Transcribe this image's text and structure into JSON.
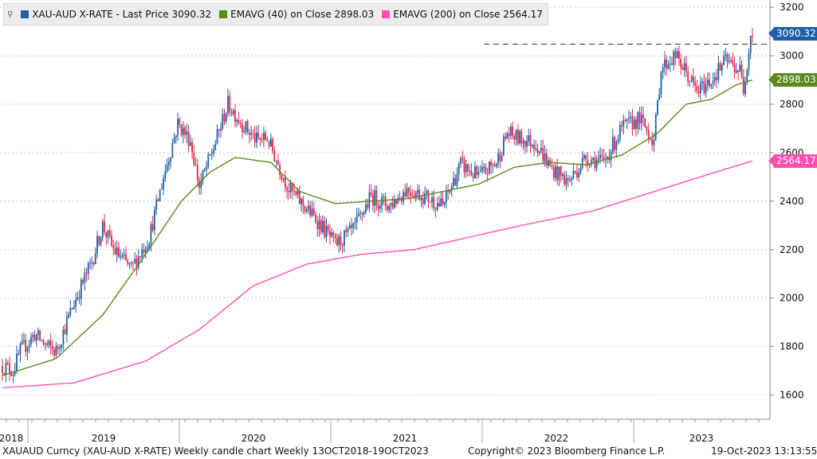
{
  "legend": {
    "pin_icon": "pin-icon",
    "series": [
      {
        "key": "price",
        "text": "XAU-AUD X-RATE - Last Price 3090.32",
        "color": "#1f5fa8"
      },
      {
        "key": "ema40",
        "text": "EMAVG (40)  on Close 2898.03",
        "color": "#5a8a1e"
      },
      {
        "key": "ema200",
        "text": "EMAVG (200)  on Close 2564.17",
        "color": "#ff4fb0"
      }
    ]
  },
  "footer": {
    "left": "XAUAUD Curncy (XAU-AUD X-RATE) Weekly candle chart  Weekly 13OCT2018-19OCT2023",
    "center": "Copyright© 2023 Bloomberg Finance L.P.",
    "right": "19-Oct-2023 13:13:55"
  },
  "badges": [
    {
      "label": "3090.32",
      "value": 3090.32,
      "color": "#1f5fa8"
    },
    {
      "label": "2898.03",
      "value": 2898.03,
      "color": "#5a8a1e"
    },
    {
      "label": "2564.17",
      "value": 2564.17,
      "color": "#ff4fb0"
    }
  ],
  "chart_data": {
    "type": "candlestick",
    "y_ticks": [
      1600,
      1800,
      2000,
      2200,
      2400,
      2600,
      2800,
      3000,
      3200
    ],
    "ylim": [
      1500,
      3230
    ],
    "x_labels": [
      "2018",
      "2019",
      "2020",
      "2021",
      "2022",
      "2023"
    ],
    "reference_line": {
      "value": 3048,
      "style": "dashed"
    },
    "grid": true,
    "colors": {
      "up": "#1f5fa8",
      "down": "#e8274b",
      "ema40": "#5a8a1e",
      "ema200": "#ff4fb0"
    },
    "price_path": [
      [
        0,
        1720
      ],
      [
        6,
        1700
      ],
      [
        10,
        1780
      ],
      [
        18,
        1850
      ],
      [
        25,
        1800
      ],
      [
        30,
        1780
      ],
      [
        40,
        1980
      ],
      [
        50,
        2150
      ],
      [
        56,
        2300
      ],
      [
        62,
        2200
      ],
      [
        72,
        2120
      ],
      [
        82,
        2250
      ],
      [
        90,
        2500
      ],
      [
        98,
        2720
      ],
      [
        105,
        2650
      ],
      [
        110,
        2460
      ],
      [
        118,
        2620
      ],
      [
        126,
        2800
      ],
      [
        136,
        2700
      ],
      [
        142,
        2650
      ],
      [
        148,
        2660
      ],
      [
        160,
        2450
      ],
      [
        176,
        2320
      ],
      [
        186,
        2220
      ],
      [
        196,
        2280
      ],
      [
        206,
        2420
      ],
      [
        216,
        2380
      ],
      [
        226,
        2450
      ],
      [
        236,
        2420
      ],
      [
        246,
        2380
      ],
      [
        256,
        2550
      ],
      [
        266,
        2500
      ],
      [
        276,
        2560
      ],
      [
        282,
        2680
      ],
      [
        288,
        2660
      ],
      [
        298,
        2640
      ],
      [
        306,
        2540
      ],
      [
        316,
        2480
      ],
      [
        326,
        2580
      ],
      [
        336,
        2560
      ],
      [
        346,
        2700
      ],
      [
        356,
        2740
      ],
      [
        364,
        2650
      ],
      [
        368,
        2950
      ],
      [
        376,
        3000
      ],
      [
        382,
        2930
      ],
      [
        388,
        2850
      ],
      [
        396,
        2900
      ],
      [
        404,
        2980
      ],
      [
        412,
        2940
      ],
      [
        414,
        2860
      ],
      [
        418,
        3090
      ]
    ],
    "ema40_path": [
      [
        0,
        1680
      ],
      [
        30,
        1750
      ],
      [
        56,
        1930
      ],
      [
        80,
        2180
      ],
      [
        100,
        2400
      ],
      [
        116,
        2520
      ],
      [
        130,
        2580
      ],
      [
        150,
        2560
      ],
      [
        166,
        2440
      ],
      [
        186,
        2390
      ],
      [
        206,
        2400
      ],
      [
        226,
        2410
      ],
      [
        246,
        2440
      ],
      [
        266,
        2470
      ],
      [
        286,
        2540
      ],
      [
        306,
        2560
      ],
      [
        326,
        2550
      ],
      [
        346,
        2590
      ],
      [
        366,
        2680
      ],
      [
        382,
        2800
      ],
      [
        396,
        2820
      ],
      [
        410,
        2880
      ],
      [
        418,
        2898
      ]
    ],
    "ema200_path": [
      [
        0,
        1630
      ],
      [
        40,
        1650
      ],
      [
        80,
        1740
      ],
      [
        110,
        1870
      ],
      [
        140,
        2050
      ],
      [
        170,
        2140
      ],
      [
        200,
        2180
      ],
      [
        230,
        2200
      ],
      [
        260,
        2250
      ],
      [
        290,
        2300
      ],
      [
        330,
        2360
      ],
      [
        360,
        2430
      ],
      [
        390,
        2500
      ],
      [
        418,
        2564
      ]
    ]
  }
}
